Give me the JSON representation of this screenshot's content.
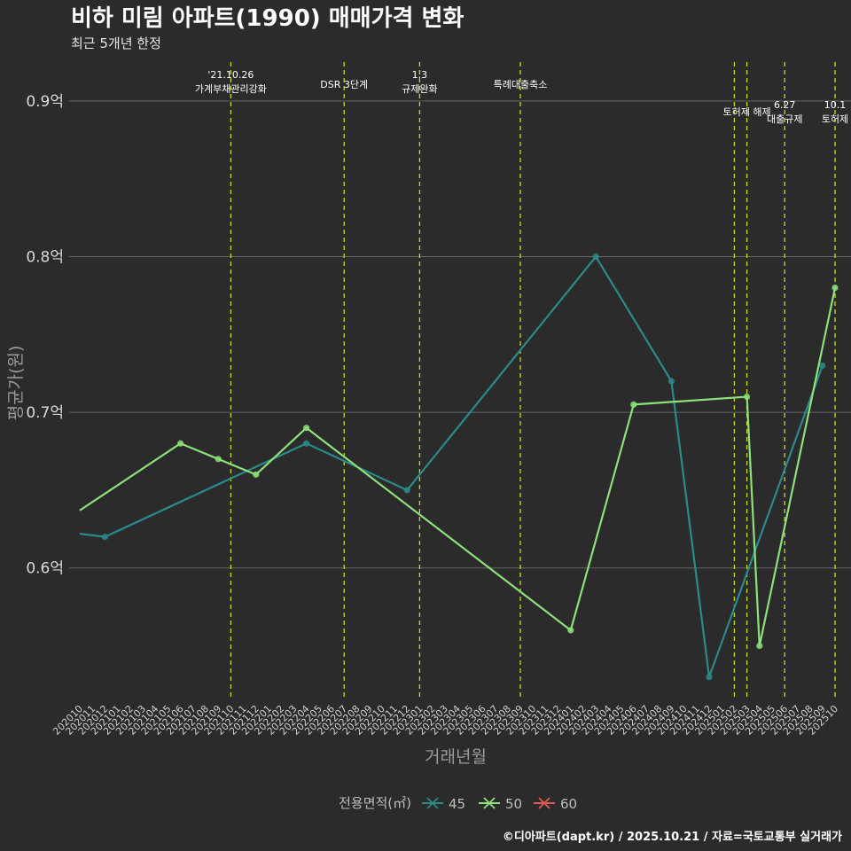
{
  "page": {
    "title": "비하 미림 아파트(1990) 매매가격 변화",
    "subtitle": "최근 5개년 한정",
    "footer": "©디아파트(dapt.kr) / 2025.10.21 / 자료=국토교통부 실거래가"
  },
  "colors": {
    "background": "#2b2b2b",
    "gridline": "#666666",
    "event_line": "#c8d91a",
    "series_45": "#2a8a8a",
    "series_50": "#8de07a",
    "series_60": "#e05a5a"
  },
  "chart_data": {
    "type": "line",
    "title": "비하 미림 아파트(1990) 매매가격 변화",
    "subtitle": "최근 5개년 한정",
    "xlabel": "거래년월",
    "ylabel": "평균가(원)",
    "ylim": [
      0.515,
      0.925
    ],
    "yticks": [
      {
        "value": 0.6,
        "label": "0.6억"
      },
      {
        "value": 0.7,
        "label": "0.7억"
      },
      {
        "value": 0.8,
        "label": "0.8억"
      },
      {
        "value": 0.9,
        "label": "0.9억"
      }
    ],
    "categories": [
      "202010",
      "202011",
      "202012",
      "202101",
      "202102",
      "202103",
      "202104",
      "202105",
      "202106",
      "202107",
      "202108",
      "202109",
      "202110",
      "202111",
      "202112",
      "202201",
      "202202",
      "202203",
      "202204",
      "202205",
      "202206",
      "202207",
      "202208",
      "202209",
      "202210",
      "202211",
      "202212",
      "202301",
      "202302",
      "202303",
      "202304",
      "202305",
      "202306",
      "202307",
      "202308",
      "202309",
      "202310",
      "202311",
      "202312",
      "202401",
      "202402",
      "202403",
      "202404",
      "202405",
      "202406",
      "202407",
      "202408",
      "202409",
      "202410",
      "202411",
      "202412",
      "202501",
      "202502",
      "202503",
      "202504",
      "202505",
      "202506",
      "202507",
      "202508",
      "202509",
      "202510"
    ],
    "series": [
      {
        "name": "45",
        "color": "#2a8a8a",
        "points": [
          {
            "x": "202010",
            "y": 0.622
          },
          {
            "x": "202012",
            "y": 0.62
          },
          {
            "x": "202204",
            "y": 0.68
          },
          {
            "x": "202212",
            "y": 0.65
          },
          {
            "x": "202403",
            "y": 0.8
          },
          {
            "x": "202409",
            "y": 0.72
          },
          {
            "x": "202412",
            "y": 0.53
          },
          {
            "x": "202509",
            "y": 0.73
          }
        ]
      },
      {
        "name": "50",
        "color": "#8de07a",
        "points": [
          {
            "x": "202010",
            "y": 0.637
          },
          {
            "x": "202106",
            "y": 0.68
          },
          {
            "x": "202109",
            "y": 0.67
          },
          {
            "x": "202112",
            "y": 0.66
          },
          {
            "x": "202204",
            "y": 0.69
          },
          {
            "x": "202401",
            "y": 0.56
          },
          {
            "x": "202406",
            "y": 0.705
          },
          {
            "x": "202503",
            "y": 0.71
          },
          {
            "x": "202504",
            "y": 0.55
          },
          {
            "x": "202510",
            "y": 0.78
          }
        ]
      },
      {
        "name": "60",
        "color": "#e05a5a",
        "points": []
      }
    ],
    "events": [
      {
        "x": "202110",
        "lines": [
          "'21.10.26",
          "가계부채관리강화"
        ],
        "level": 0
      },
      {
        "x": "202207",
        "lines": [
          "DSR 3단계"
        ],
        "level": 2
      },
      {
        "x": "202301",
        "lines": [
          "1.3",
          "규제완화"
        ],
        "level": 0
      },
      {
        "x": "202309",
        "lines": [
          "특례대출축소"
        ],
        "level": 2
      },
      {
        "x": "202502",
        "lines": [],
        "level": 1
      },
      {
        "x": "202503",
        "lines": [
          "토허제 해제"
        ],
        "level": 1
      },
      {
        "x": "202506",
        "lines": [
          "6.27",
          "대출규제"
        ],
        "level": 3
      },
      {
        "x": "202510",
        "lines": [
          "10.1",
          "토허제"
        ],
        "level": 3
      }
    ],
    "legend": {
      "title": "전용면적(㎡)",
      "items": [
        "45",
        "50",
        "60"
      ],
      "position": "bottom"
    }
  }
}
